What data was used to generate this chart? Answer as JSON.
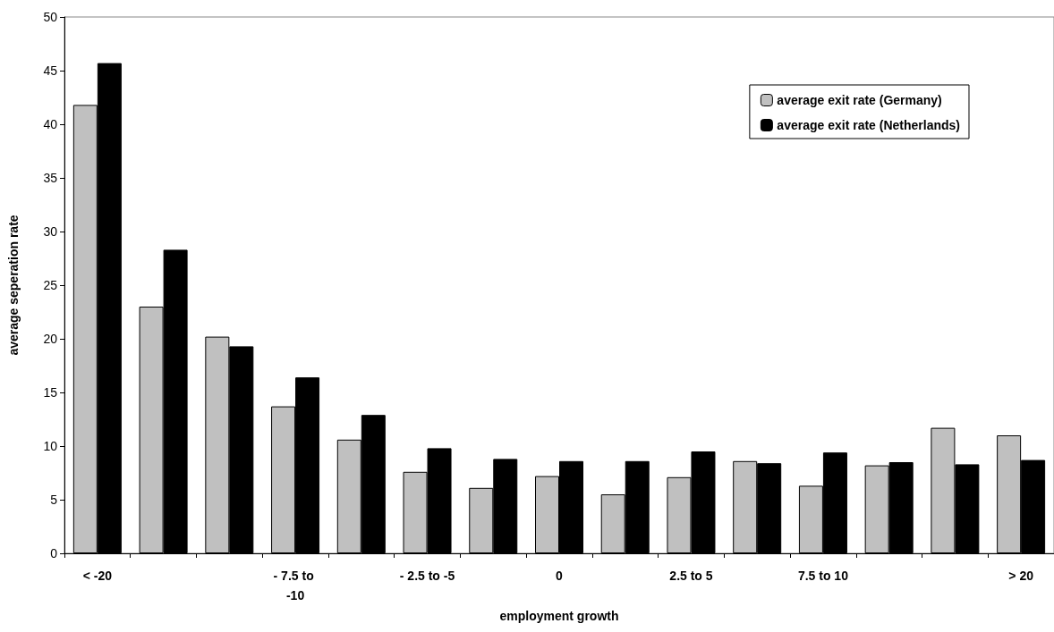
{
  "chart_data": {
    "type": "bar",
    "xlabel": "employment growth",
    "ylabel": "average seperation rate",
    "categories": [
      "< -20",
      null,
      null,
      "- 7.5 to -10",
      null,
      "- 2.5 to -5",
      null,
      "0",
      null,
      "2.5 to 5",
      null,
      "7.5 to 10",
      null,
      null,
      "> 20"
    ],
    "series": [
      {
        "name": "average exit rate (Germany)",
        "color": "#c0c0c0",
        "values": [
          41.8,
          23.0,
          20.2,
          13.7,
          10.6,
          7.6,
          6.1,
          7.2,
          5.5,
          7.1,
          8.6,
          6.3,
          8.2,
          11.7,
          11.0
        ]
      },
      {
        "name": "average exit rate (Netherlands)",
        "color": "#000000",
        "values": [
          45.7,
          28.3,
          19.3,
          16.4,
          12.9,
          9.8,
          8.8,
          8.6,
          8.6,
          9.5,
          8.4,
          9.4,
          8.5,
          8.3,
          8.7
        ]
      }
    ],
    "ylim": [
      0,
      50
    ],
    "yticks": [
      0,
      5,
      10,
      15,
      20,
      25,
      30,
      35,
      40,
      45,
      50
    ],
    "grid": false,
    "legend": "top right"
  }
}
